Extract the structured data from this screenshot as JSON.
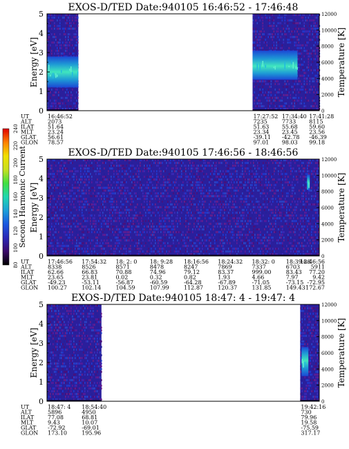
{
  "colorbar": {
    "label": "Second Harmonic Current",
    "ticks": [
      80,
      100,
      120,
      140,
      160,
      180,
      200,
      220,
      240
    ],
    "colors": [
      "#000000",
      "#3a0a6a",
      "#2a28b8",
      "#1a58e0",
      "#1da0d8",
      "#20d8b0",
      "#40e040",
      "#c8e020",
      "#f0e000",
      "#ff8000",
      "#e00000"
    ]
  },
  "chart_data": [
    {
      "type": "heatmap",
      "title": "EXOS-D/TED   Date:940105  16:46:52 - 17:46:48",
      "ylabel": "Energy [eV]",
      "ylabel_right": "Temperature [K]",
      "ylim": [
        0,
        5
      ],
      "ylim_right": [
        0,
        12000
      ],
      "yticks": [
        0,
        1,
        2,
        3,
        4,
        5
      ],
      "yticks_right": [
        0,
        2000,
        4000,
        6000,
        8000,
        10000,
        12000
      ],
      "data_segments": [
        [
          0,
          0.115
        ],
        [
          0.755,
          1.0
        ]
      ],
      "bright_bands": [
        {
          "x": [
            0.0,
            0.115
          ],
          "energy": [
            1.2,
            2.8
          ],
          "peak_energy": 2.0
        },
        {
          "x": [
            0.755,
            0.92
          ],
          "energy": [
            1.6,
            3.1
          ],
          "peak_energy": 2.3
        }
      ],
      "orbit_labels": [
        "UT",
        "ALT",
        "ILAT",
        "MLT",
        "GLAT",
        "GLON"
      ],
      "orbit_columns": [
        {
          "x": 0.0,
          "values": [
            "16:46:52",
            "2073",
            "51.64",
            "23.24",
            "56.61",
            "78.57"
          ]
        },
        {
          "x": 0.755,
          "values": [
            "17:27:52",
            "7235",
            "51.63",
            "23.34",
            "-39.11",
            "97.01"
          ]
        },
        {
          "x": 0.86,
          "values": [
            "17:34:40",
            "7733",
            "55.68",
            "23.45",
            "-42.78",
            "98.03"
          ]
        },
        {
          "x": 0.96,
          "values": [
            "17:41:28",
            "8115",
            "59.60",
            "23.56",
            "-46.39",
            "99.18"
          ]
        }
      ]
    },
    {
      "type": "heatmap",
      "title": "EXOS-D/TED   Date:940105  17:46:56 - 18:46:56",
      "ylabel": "Energy [eV]",
      "ylabel_right": "Temperature [K]",
      "ylim": [
        0,
        5
      ],
      "ylim_right": [
        0,
        12000
      ],
      "yticks": [
        0,
        1,
        2,
        3,
        4,
        5
      ],
      "yticks_right": [
        0,
        2000,
        4000,
        6000,
        8000,
        10000,
        12000
      ],
      "data_segments": [
        [
          0,
          1.0
        ]
      ],
      "bright_bands": [
        {
          "x": [
            0.955,
            0.965
          ],
          "energy": [
            3.4,
            4.2
          ],
          "peak_energy": 3.8
        }
      ],
      "orbit_labels": [
        "UT",
        "ALT",
        "ILAT",
        "MLT",
        "GLAT",
        "GLON"
      ],
      "orbit_columns": [
        {
          "x": 0.0,
          "values": [
            "17:46:56",
            "8338",
            "62.66",
            "23.65",
            "-49.23",
            "100.27"
          ]
        },
        {
          "x": 0.125,
          "values": [
            "17:54:32",
            "8526",
            "66.83",
            "23.81",
            "-53.11",
            "102.14"
          ]
        },
        {
          "x": 0.25,
          "values": [
            "18: 2: 0",
            "8571",
            "70.88",
            "0.02",
            "-56.87",
            "104.59"
          ]
        },
        {
          "x": 0.375,
          "values": [
            "18: 9:28",
            "8478",
            "74.96",
            "0.32",
            "-60.59",
            "107.99"
          ]
        },
        {
          "x": 0.5,
          "values": [
            "18:16:56",
            "8247",
            "79.12",
            "0.82",
            "-64.28",
            "112.87"
          ]
        },
        {
          "x": 0.625,
          "values": [
            "18:24:32",
            "7869",
            "83.37",
            "1.93",
            "-67.89",
            "120.37"
          ]
        },
        {
          "x": 0.75,
          "values": [
            "18:32: 0",
            "7337",
            "999.00",
            "4.66",
            "-71.05",
            "131.85"
          ]
        },
        {
          "x": 0.875,
          "values": [
            "18:39:28",
            "6703",
            "83.43",
            "7.97",
            "-73.15",
            "149.43"
          ]
        },
        {
          "x": 1.0,
          "values": [
            "18:46:56",
            "5911",
            "77.20",
            "9.42",
            "-72.95",
            "172.67"
          ]
        }
      ]
    },
    {
      "type": "heatmap",
      "title": "EXOS-D/TED   Date:940105  18:47: 4 - 19:47: 4",
      "ylabel": "Energy [eV]",
      "ylabel_right": "Temperature [K]",
      "ylim": [
        0,
        5
      ],
      "ylim_right": [
        0,
        12000
      ],
      "yticks": [
        0,
        1,
        2,
        3,
        4,
        5
      ],
      "yticks_right": [
        0,
        2000,
        4000,
        6000,
        8000,
        10000,
        12000
      ],
      "data_segments": [
        [
          0,
          0.2
        ],
        [
          0.93,
          1.0
        ]
      ],
      "bright_bands": [
        {
          "x": [
            0.935,
            0.96
          ],
          "energy": [
            1.3,
            2.8
          ],
          "peak_energy": 2.1
        }
      ],
      "orbit_labels": [
        "UT",
        "ALT",
        "ILAT",
        "MLT",
        "GLAT",
        "GLON"
      ],
      "orbit_columns": [
        {
          "x": 0.0,
          "values": [
            "18:47: 4",
            "5896",
            "77.08",
            "9.43",
            "-72.92",
            "173.10"
          ]
        },
        {
          "x": 0.125,
          "values": [
            "18:54:40",
            "4950",
            "68.81",
            "10.07",
            "-69.01",
            "195.96"
          ]
        },
        {
          "x": 0.93,
          "values": [
            "19:42:16",
            "730",
            "79.96",
            "19.58",
            "-75.59",
            "317.17"
          ]
        }
      ]
    }
  ]
}
